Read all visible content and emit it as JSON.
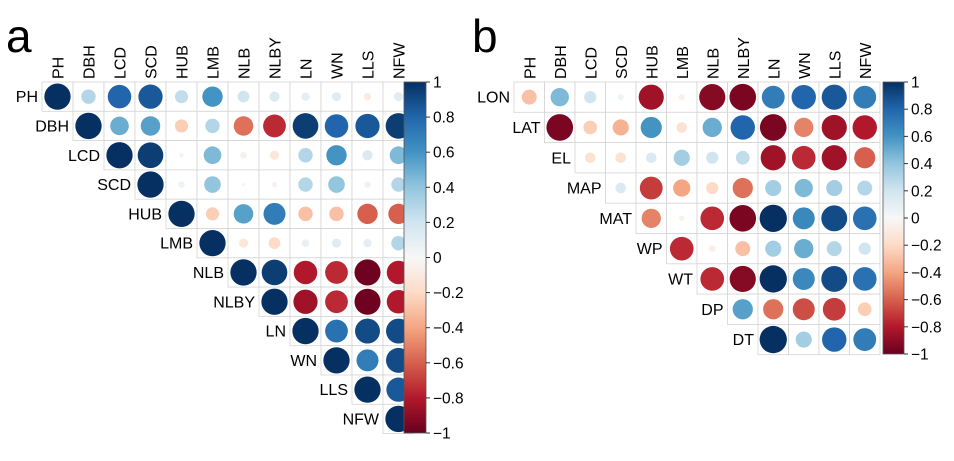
{
  "figure": {
    "panels": [
      "a",
      "b"
    ]
  },
  "chart_data": [
    {
      "type": "heatmap",
      "panel": "a",
      "style": "upper-triangle correlation matrix with circles (size and color encode r)",
      "columns": [
        "PH",
        "DBH",
        "LCD",
        "SCD",
        "HUB",
        "LMB",
        "NLB",
        "NLBY",
        "LN",
        "WN",
        "LLS",
        "NFW"
      ],
      "rows": [
        "PH",
        "DBH",
        "LCD",
        "SCD",
        "HUB",
        "LMB",
        "NLB",
        "NLBY",
        "LN",
        "WN",
        "LLS",
        "NFW"
      ],
      "values": [
        [
          1.0,
          0.3,
          0.8,
          0.85,
          0.25,
          0.6,
          0.2,
          0.15,
          0.1,
          0.12,
          -0.08,
          0.12
        ],
        [
          null,
          1.0,
          0.5,
          0.55,
          -0.25,
          0.3,
          -0.55,
          -0.75,
          0.95,
          0.8,
          0.85,
          0.95
        ],
        [
          null,
          null,
          1.0,
          0.95,
          0.03,
          0.45,
          -0.06,
          -0.12,
          0.3,
          0.6,
          0.15,
          0.45
        ],
        [
          null,
          null,
          null,
          1.0,
          0.06,
          0.4,
          0.02,
          -0.04,
          0.3,
          0.4,
          0.06,
          0.3
        ],
        [
          null,
          null,
          null,
          null,
          1.0,
          -0.25,
          0.55,
          0.7,
          -0.3,
          -0.3,
          -0.6,
          -0.6
        ],
        [
          null,
          null,
          null,
          null,
          null,
          1.0,
          -0.12,
          -0.2,
          0.08,
          0.12,
          0.1,
          0.3
        ],
        [
          null,
          null,
          null,
          null,
          null,
          null,
          1.0,
          0.95,
          -0.8,
          -0.75,
          -0.98,
          -0.8
        ],
        [
          null,
          null,
          null,
          null,
          null,
          null,
          null,
          1.0,
          -0.85,
          -0.75,
          -0.98,
          -0.8
        ],
        [
          null,
          null,
          null,
          null,
          null,
          null,
          null,
          null,
          1.0,
          0.75,
          0.9,
          0.9
        ],
        [
          null,
          null,
          null,
          null,
          null,
          null,
          null,
          null,
          null,
          1.0,
          0.7,
          0.9
        ],
        [
          null,
          null,
          null,
          null,
          null,
          null,
          null,
          null,
          null,
          null,
          1.0,
          0.85
        ],
        [
          null,
          null,
          null,
          null,
          null,
          null,
          null,
          null,
          null,
          null,
          null,
          1.0
        ]
      ],
      "colorbar": {
        "ticks": [
          "1",
          "0.8",
          "0.6",
          "0.4",
          "0.2",
          "0",
          "−0.2",
          "−0.4",
          "−0.6",
          "−0.8",
          "−1"
        ],
        "range": [
          -1,
          1
        ]
      }
    },
    {
      "type": "heatmap",
      "panel": "b",
      "style": "correlation matrix with circles (size and color encode r)",
      "columns": [
        "PH",
        "DBH",
        "LCD",
        "SCD",
        "HUB",
        "LMB",
        "NLB",
        "NLBY",
        "LN",
        "WN",
        "LLS",
        "NFW"
      ],
      "rows": [
        "LON",
        "LAT",
        "EL",
        "MAP",
        "MAT",
        "WP",
        "WT",
        "DP",
        "DT"
      ],
      "values": [
        [
          -0.3,
          0.45,
          0.2,
          0.05,
          -0.85,
          -0.05,
          -0.92,
          -0.95,
          0.7,
          0.8,
          0.85,
          0.7
        ],
        [
          null,
          -0.95,
          -0.25,
          -0.35,
          0.6,
          -0.15,
          0.5,
          0.8,
          -0.95,
          -0.5,
          -0.85,
          -0.8
        ],
        [
          null,
          null,
          -0.15,
          -0.15,
          0.15,
          0.35,
          0.2,
          0.25,
          -0.85,
          -0.75,
          -0.85,
          -0.6
        ],
        [
          null,
          null,
          null,
          0.15,
          -0.7,
          -0.4,
          -0.2,
          -0.55,
          0.35,
          0.45,
          0.35,
          0.3
        ],
        [
          null,
          null,
          null,
          null,
          -0.5,
          -0.04,
          -0.75,
          -0.95,
          1.0,
          0.65,
          0.9,
          0.75
        ],
        [
          null,
          null,
          null,
          null,
          null,
          -0.75,
          -0.06,
          -0.3,
          0.35,
          0.5,
          0.3,
          0.2
        ],
        [
          null,
          null,
          null,
          null,
          null,
          null,
          -0.75,
          -0.92,
          1.0,
          0.65,
          0.9,
          0.75
        ],
        [
          null,
          null,
          null,
          null,
          null,
          null,
          null,
          0.55,
          -0.55,
          -0.65,
          -0.7,
          -0.25
        ],
        [
          null,
          null,
          null,
          null,
          null,
          null,
          null,
          null,
          1.0,
          0.35,
          0.8,
          0.7
        ]
      ],
      "colorbar": {
        "ticks": [
          "1",
          "0.8",
          "0.6",
          "0.4",
          "0.2",
          "0",
          "−0.2",
          "−0.4",
          "−0.6",
          "−0.8",
          "−1"
        ],
        "range": [
          -1,
          1
        ]
      }
    }
  ]
}
